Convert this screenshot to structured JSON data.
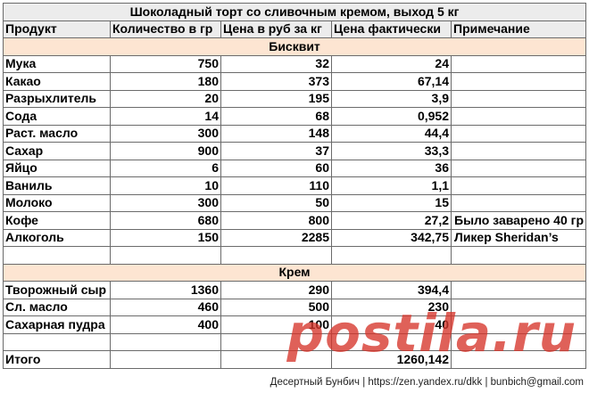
{
  "title": "Шоколадный торт со сливочным кремом, выход 5 кг",
  "headers": [
    "Продукт",
    "Количество в гр",
    "Цена в руб за кг",
    "Цена фактически",
    "Примечание"
  ],
  "sections": [
    {
      "name": "Бисквит",
      "rows": [
        {
          "product": "Мука",
          "qty": "750",
          "price": "32",
          "actual": "24",
          "note": ""
        },
        {
          "product": "Какао",
          "qty": "180",
          "price": "373",
          "actual": "67,14",
          "note": ""
        },
        {
          "product": "Разрыхлитель",
          "qty": "20",
          "price": "195",
          "actual": "3,9",
          "note": ""
        },
        {
          "product": "Сода",
          "qty": "14",
          "price": "68",
          "actual": "0,952",
          "note": ""
        },
        {
          "product": "Раст. масло",
          "qty": "300",
          "price": "148",
          "actual": "44,4",
          "note": ""
        },
        {
          "product": "Сахар",
          "qty": "900",
          "price": "37",
          "actual": "33,3",
          "note": ""
        },
        {
          "product": "Яйцо",
          "qty": "6",
          "price": "60",
          "actual": "36",
          "note": ""
        },
        {
          "product": "Ваниль",
          "qty": "10",
          "price": "110",
          "actual": "1,1",
          "note": ""
        },
        {
          "product": "Молоко",
          "qty": "300",
          "price": "50",
          "actual": "15",
          "note": ""
        },
        {
          "product": "Кофе",
          "qty": "680",
          "price": "800",
          "actual": "27,2",
          "note": "Было заварено 40 гр"
        },
        {
          "product": "Алкоголь",
          "qty": "150",
          "price": "2285",
          "actual": "342,75",
          "note": "Ликер Sheridan’s"
        }
      ]
    },
    {
      "name": "Крем",
      "rows": [
        {
          "product": "Творожный сыр",
          "qty": "1360",
          "price": "290",
          "actual": "394,4",
          "note": ""
        },
        {
          "product": "Сл. масло",
          "qty": "460",
          "price": "500",
          "actual": "230",
          "note": ""
        },
        {
          "product": "Сахарная пудра",
          "qty": "400",
          "price": "100",
          "actual": "40",
          "note": ""
        }
      ]
    }
  ],
  "total": {
    "label": "Итого",
    "actual": "1260,142"
  },
  "credit": "Десертный Бунбич | https://zen.yandex.ru/dkk | bunbich@gmail.com",
  "watermark": "postila.ru"
}
